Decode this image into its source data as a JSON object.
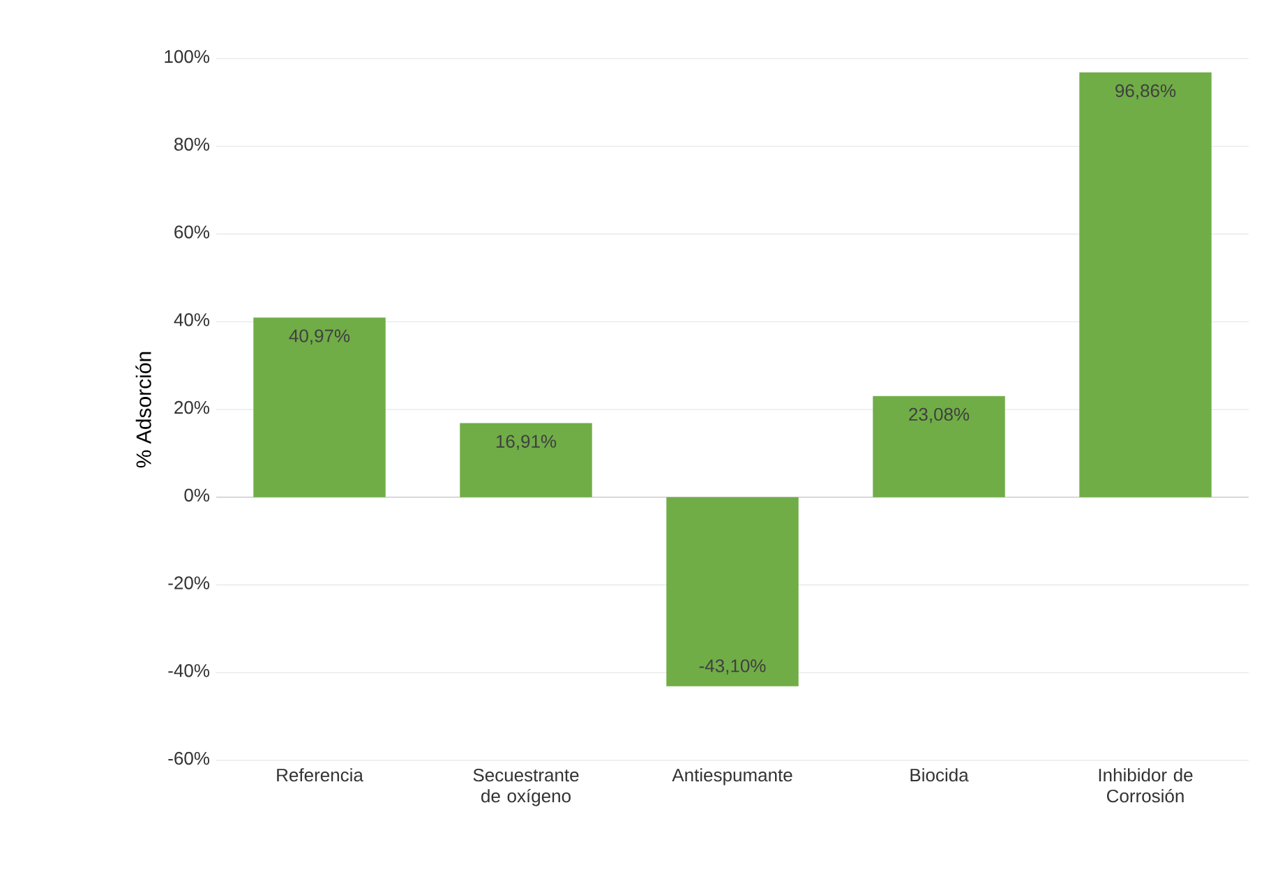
{
  "chart_data": {
    "type": "bar",
    "ylabel": "% Adsorción",
    "categories": [
      "Referencia",
      "Secuestrante de oxígeno",
      "Antiespumante",
      "Biocida",
      "Inhibidor de Corrosión"
    ],
    "values": [
      40.97,
      16.91,
      -43.1,
      23.08,
      96.86
    ],
    "value_labels": [
      "40,97%",
      "16,91%",
      "-43,10%",
      "23,08%",
      "96,86%"
    ],
    "color": "#70ad47",
    "ylim": [
      -60,
      100
    ],
    "yticks": [
      {
        "value": -60,
        "label": "-60%"
      },
      {
        "value": -40,
        "label": "-40%"
      },
      {
        "value": -20,
        "label": "-20%"
      },
      {
        "value": 0,
        "label": "0%"
      },
      {
        "value": 20,
        "label": "20%"
      },
      {
        "value": 40,
        "label": "40%"
      },
      {
        "value": 60,
        "label": "60%"
      },
      {
        "value": 80,
        "label": "80%"
      },
      {
        "value": 100,
        "label": "100%"
      }
    ],
    "grid": "y"
  }
}
